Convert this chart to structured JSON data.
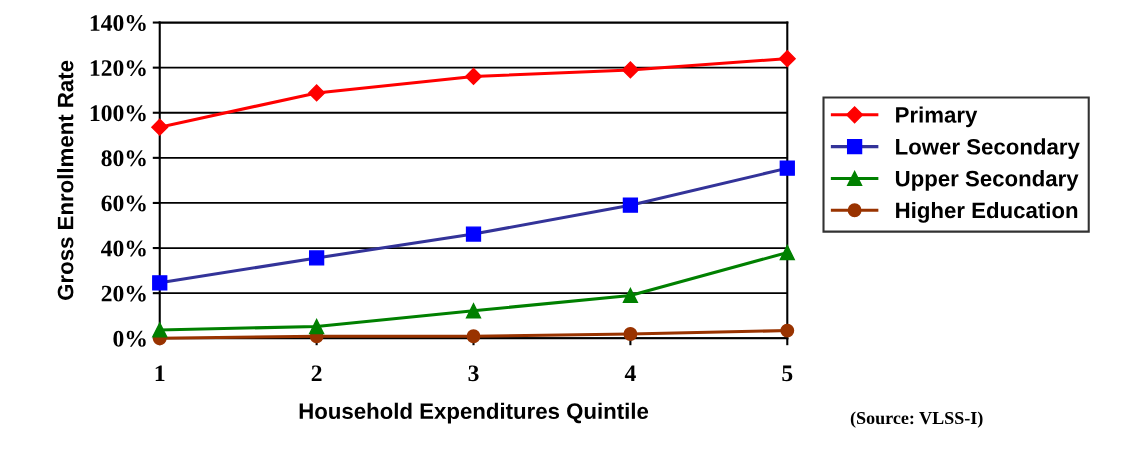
{
  "chart_data": {
    "type": "line",
    "xlabel": "Household Expenditures Quintile",
    "ylabel": "Gross Enrollment Rate",
    "x": [
      1,
      2,
      3,
      4,
      5
    ],
    "xlim": [
      1,
      5
    ],
    "xticks": [
      1,
      2,
      3,
      4,
      5
    ],
    "ylim": [
      0,
      140
    ],
    "yticks": [
      {
        "value": 0,
        "label": "0%"
      },
      {
        "value": 20,
        "label": "20%"
      },
      {
        "value": 40,
        "label": "40%"
      },
      {
        "value": 60,
        "label": "60%"
      },
      {
        "value": 80,
        "label": "80%"
      },
      {
        "value": 100,
        "label": "100%"
      },
      {
        "value": 120,
        "label": "120%"
      },
      {
        "value": 140,
        "label": "140%"
      }
    ],
    "grid": "y",
    "legend": "right",
    "annotations": [
      "(Source: VLSS-I)"
    ],
    "series": [
      {
        "name": "Primary",
        "color": "#ff0000",
        "marker": "diamond",
        "values": [
          93.6,
          108.8,
          116.1,
          119,
          124
        ]
      },
      {
        "name": "Lower Secondary",
        "color": "#333399",
        "marker": "square",
        "values": [
          24.6,
          35.6,
          46.2,
          59,
          75.4
        ]
      },
      {
        "name": "Upper Secondary",
        "color": "#008000",
        "marker": "triangle",
        "values": [
          3.7,
          5.2,
          12.2,
          19,
          38
        ]
      },
      {
        "name": "Higher Education",
        "color": "#993300",
        "marker": "circle",
        "values": [
          0,
          0.9,
          0.9,
          1.9,
          3.4
        ]
      }
    ]
  }
}
